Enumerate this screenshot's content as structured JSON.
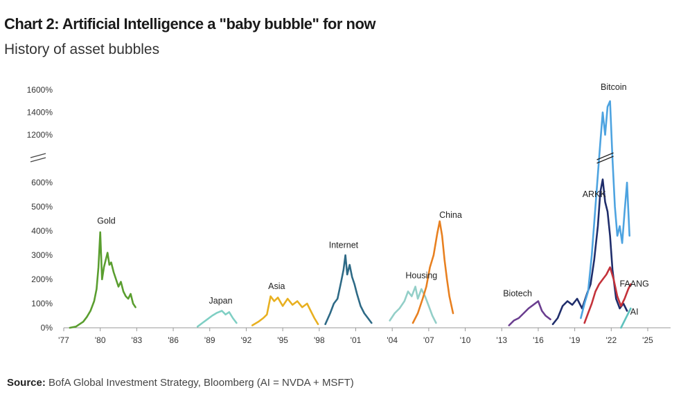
{
  "title": "Chart 2: Artificial Intelligence a \"baby bubble\" for now",
  "subtitle": "History of asset bubbles",
  "source": {
    "label": "Source:",
    "text": " BofA Global Investment Strategy, Bloomberg (AI = NVDA + MSFT)"
  },
  "chart_data": {
    "type": "line",
    "title": "History of asset bubbles",
    "xlabel": "",
    "ylabel": "",
    "x_ticks": [
      "'77",
      "'80",
      "'83",
      "'86",
      "'89",
      "'92",
      "'95",
      "'98",
      "'01",
      "'04",
      "'07",
      "'10",
      "'13",
      "'16",
      "'19",
      "'22",
      "'25"
    ],
    "x_tick_years": [
      1977,
      1980,
      1983,
      1986,
      1989,
      1992,
      1995,
      1998,
      2001,
      2004,
      2007,
      2010,
      2013,
      2016,
      2019,
      2022,
      2025
    ],
    "y_ticks_lower": [
      "0%",
      "100%",
      "200%",
      "300%",
      "400%",
      "500%",
      "600%"
    ],
    "y_tick_lower_values": [
      0,
      100,
      200,
      300,
      400,
      500,
      600
    ],
    "y_ticks_upper": [
      "1200%",
      "1400%",
      "1600%"
    ],
    "y_tick_upper_values": [
      1200,
      1400,
      1600
    ],
    "y_axis_break": "between 600% and 1200%",
    "grid": false,
    "series": [
      {
        "name": "Gold",
        "color": "#5a9e2f",
        "x": [
          1977.5,
          1978.0,
          1978.3,
          1978.6,
          1978.9,
          1979.2,
          1979.5,
          1979.7,
          1979.85,
          1980.0,
          1980.15,
          1980.3,
          1980.45,
          1980.6,
          1980.75,
          1980.9,
          1981.1,
          1981.3,
          1981.5,
          1981.7,
          1981.9,
          1982.1,
          1982.3,
          1982.5,
          1982.7,
          1982.9
        ],
        "y": [
          0,
          5,
          15,
          25,
          45,
          70,
          110,
          160,
          250,
          395,
          200,
          250,
          280,
          310,
          260,
          270,
          230,
          200,
          170,
          190,
          150,
          130,
          120,
          140,
          100,
          85
        ]
      },
      {
        "name": "Japan",
        "color": "#7fcfc4",
        "x": [
          1988.0,
          1988.4,
          1988.8,
          1989.2,
          1989.6,
          1990.0,
          1990.3,
          1990.6,
          1990.9,
          1991.2
        ],
        "y": [
          5,
          20,
          35,
          50,
          62,
          70,
          55,
          65,
          40,
          20
        ]
      },
      {
        "name": "Asia",
        "color": "#e8b020",
        "x": [
          1992.5,
          1993.0,
          1993.4,
          1993.7,
          1994.0,
          1994.3,
          1994.6,
          1995.0,
          1995.4,
          1995.8,
          1996.2,
          1996.6,
          1997.0,
          1997.3,
          1997.6,
          1997.9
        ],
        "y": [
          10,
          25,
          40,
          55,
          130,
          110,
          125,
          90,
          120,
          95,
          110,
          85,
          100,
          70,
          40,
          15
        ]
      },
      {
        "name": "Internet",
        "color": "#2e6a86",
        "x": [
          1998.5,
          1998.9,
          1999.2,
          1999.5,
          1999.8,
          2000.0,
          2000.15,
          2000.3,
          2000.5,
          2000.7,
          2000.9,
          2001.1,
          2001.4,
          2001.7,
          2002.0,
          2002.3
        ],
        "y": [
          15,
          60,
          100,
          120,
          190,
          240,
          300,
          220,
          260,
          210,
          180,
          140,
          90,
          60,
          40,
          20
        ]
      },
      {
        "name": "Housing",
        "color": "#93cfc8",
        "x": [
          2003.8,
          2004.2,
          2004.6,
          2005.0,
          2005.3,
          2005.6,
          2005.9,
          2006.1,
          2006.4,
          2006.7,
          2007.0,
          2007.3,
          2007.6
        ],
        "y": [
          30,
          60,
          80,
          110,
          150,
          130,
          170,
          120,
          160,
          130,
          90,
          50,
          20
        ]
      },
      {
        "name": "China",
        "color": "#e88020",
        "x": [
          2005.7,
          2006.1,
          2006.5,
          2006.8,
          2007.1,
          2007.4,
          2007.7,
          2007.9,
          2008.1,
          2008.3,
          2008.5,
          2008.7,
          2009.0
        ],
        "y": [
          20,
          60,
          120,
          170,
          250,
          300,
          390,
          440,
          380,
          280,
          200,
          130,
          60
        ]
      },
      {
        "name": "Biotech",
        "color": "#6a3d8f",
        "x": [
          2013.6,
          2014.0,
          2014.4,
          2014.8,
          2015.2,
          2015.6,
          2016.0,
          2016.3,
          2016.6,
          2017.0
        ],
        "y": [
          10,
          30,
          40,
          60,
          80,
          95,
          110,
          70,
          50,
          35
        ]
      },
      {
        "name": "ARKK",
        "color": "#1f2d6b",
        "x": [
          2017.2,
          2017.6,
          2018.0,
          2018.4,
          2018.8,
          2019.2,
          2019.6,
          2020.0,
          2020.3,
          2020.6,
          2020.9,
          2021.1,
          2021.3,
          2021.5,
          2021.7,
          2021.9,
          2022.1,
          2022.4,
          2022.7,
          2023.0,
          2023.3
        ],
        "y": [
          15,
          40,
          90,
          110,
          95,
          120,
          80,
          140,
          180,
          280,
          420,
          560,
          640,
          520,
          480,
          380,
          240,
          120,
          80,
          100,
          70
        ]
      },
      {
        "name": "Bitcoin",
        "color": "#4da3e0",
        "x": [
          2019.5,
          2019.8,
          2020.1,
          2020.4,
          2020.7,
          2020.9,
          2021.1,
          2021.3,
          2021.5,
          2021.7,
          2021.9,
          2022.1,
          2022.3,
          2022.5,
          2022.7,
          2022.9,
          2023.1,
          2023.3,
          2023.5
        ],
        "y": [
          40,
          100,
          150,
          300,
          500,
          700,
          1100,
          1400,
          1200,
          1450,
          1500,
          900,
          500,
          380,
          420,
          350,
          480,
          600,
          380
        ]
      },
      {
        "name": "FAANG",
        "color": "#c4323a",
        "x": [
          2019.8,
          2020.1,
          2020.4,
          2020.7,
          2021.0,
          2021.3,
          2021.6,
          2021.9,
          2022.2,
          2022.5,
          2022.8,
          2023.1,
          2023.4,
          2023.6
        ],
        "y": [
          20,
          60,
          100,
          150,
          180,
          200,
          220,
          250,
          200,
          130,
          90,
          120,
          160,
          180
        ]
      },
      {
        "name": "AI",
        "color": "#5fc2bd",
        "x": [
          2022.8,
          2023.0,
          2023.2,
          2023.4,
          2023.6
        ],
        "y": [
          0,
          20,
          40,
          60,
          80
        ]
      }
    ],
    "labels": [
      {
        "text": "Gold",
        "year": 1980.5,
        "value": 430
      },
      {
        "text": "Japan",
        "year": 1989.9,
        "value": 100
      },
      {
        "text": "Asia",
        "year": 1994.5,
        "value": 160
      },
      {
        "text": "Internet",
        "year": 2000.0,
        "value": 330
      },
      {
        "text": "Housing",
        "year": 2006.4,
        "value": 205
      },
      {
        "text": "China",
        "year": 2008.8,
        "value": 455
      },
      {
        "text": "Biotech",
        "year": 2014.3,
        "value": 130
      },
      {
        "text": "ARKK",
        "year": 2020.6,
        "value": 540
      },
      {
        "text": "Bitcoin",
        "year": 2022.2,
        "value": 1600
      },
      {
        "text": "FAANG",
        "year": 2023.9,
        "value": 170
      },
      {
        "text": "AI",
        "year": 2023.9,
        "value": 55
      }
    ]
  }
}
